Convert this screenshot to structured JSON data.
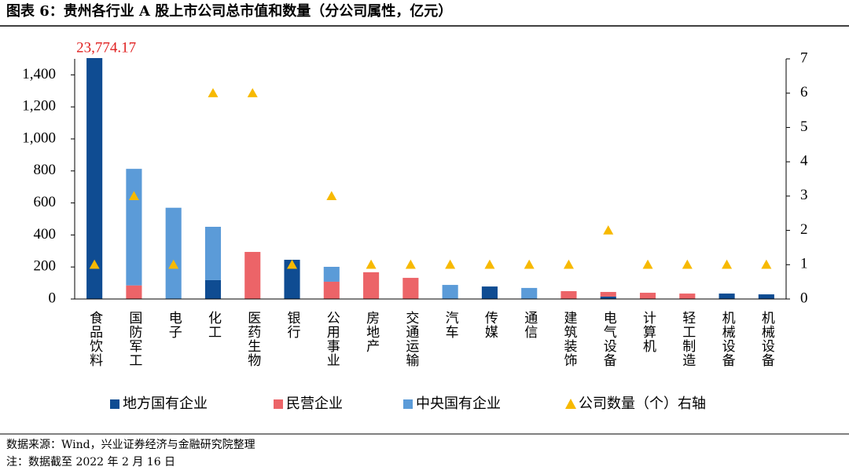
{
  "chart_data": {
    "type": "bar",
    "stacked": true,
    "title": "图表 6：贵州各行业 A 股上市公司总市值和数量（分公司属性，亿元）",
    "categories": [
      "食品饮料",
      "国防军工",
      "电子",
      "化工",
      "医药生物",
      "银行",
      "公用事业",
      "房地产",
      "交通运输",
      "汽车",
      "传媒",
      "通信",
      "建筑装饰",
      "电气设备",
      "计算机",
      "轻工制造",
      "机械设备",
      "机械设备"
    ],
    "series": [
      {
        "name": "地方国有企业",
        "type": "bar",
        "color": "#0f4c92",
        "values": [
          23774.17,
          0,
          0,
          118,
          0,
          245,
          0,
          0,
          0,
          0,
          78,
          0,
          0,
          15,
          0,
          0,
          34,
          29
        ],
        "value_labels": [
          "23,774.17",
          null,
          null,
          null,
          null,
          null,
          null,
          null,
          null,
          null,
          null,
          null,
          null,
          null,
          null,
          null,
          null,
          null
        ],
        "value_label_color": "#e02020"
      },
      {
        "name": "民营企业",
        "type": "bar",
        "color": "#ec6468",
        "values": [
          0,
          85,
          0,
          0,
          294,
          0,
          108,
          167,
          132,
          0,
          0,
          0,
          49,
          29,
          39,
          34,
          0,
          0
        ]
      },
      {
        "name": "中央国有企业",
        "type": "bar",
        "color": "#5b9bd8",
        "values": [
          0,
          728,
          570,
          333,
          0,
          0,
          93,
          0,
          0,
          88,
          0,
          69,
          0,
          0,
          0,
          0,
          0,
          0
        ]
      },
      {
        "name": "公司数量（个）右轴",
        "type": "scatter",
        "marker": "triangle",
        "axis": "y2",
        "color": "#f7b900",
        "values": [
          1,
          3,
          1,
          6,
          6,
          1,
          3,
          1,
          1,
          1,
          1,
          1,
          1,
          2,
          1,
          1,
          1,
          1
        ]
      }
    ],
    "ylim": [
      0,
      1500
    ],
    "yticks": [
      0,
      200,
      400,
      600,
      800,
      {
        "value": 1000,
        "label": "1,000"
      },
      {
        "value": 1200,
        "label": "1,200"
      },
      {
        "value": 1400,
        "label": "1,400"
      }
    ],
    "y2lim": [
      0,
      7
    ],
    "y2ticks": [
      0,
      1,
      2,
      3,
      4,
      5,
      6,
      7
    ],
    "grid": false,
    "legend": "bottom",
    "footnotes": [
      "数据来源：Wind，兴业证券经济与金融研究院整理",
      "注：数据截至 2022 年 2 月 16 日"
    ]
  }
}
